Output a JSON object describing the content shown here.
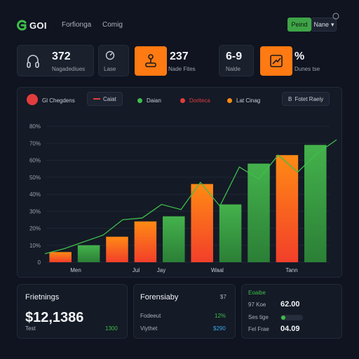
{
  "header": {
    "logo_text": "GOI",
    "nav": [
      "Forfionga",
      "Comig"
    ],
    "primary_button": "Peind",
    "dropdown_label": "Nane",
    "dropdown_caret": "▾"
  },
  "stats": [
    {
      "value": "372",
      "label": "Nagadediues"
    },
    {
      "value": "",
      "label": "Lase"
    },
    {
      "value": "237",
      "label": "Nade Fites"
    },
    {
      "value": "6-9",
      "label": "Nalde"
    },
    {
      "value": "%",
      "label": "Dunes tse"
    }
  ],
  "legend": {
    "title": "Gl Chegdens",
    "items": [
      {
        "label": "Caiat",
        "color": "#e23d3d",
        "kind": "line"
      },
      {
        "label": "Daian",
        "color": "#3fbe4b",
        "kind": "dot"
      },
      {
        "label": "Doriteca",
        "color": "#e23d3d",
        "kind": "dot"
      },
      {
        "label": "Lat Cinag",
        "color": "#ff8a14",
        "kind": "dot"
      }
    ],
    "button_label": "Fotet Raeiy",
    "button_prefix": "B"
  },
  "chart_data": {
    "type": "bar",
    "y_ticks": [
      "0",
      "10%",
      "20%",
      "30%",
      "40%",
      "50%",
      "60%",
      "70%",
      "80%"
    ],
    "x_labels": [
      "Men",
      "Jul",
      "Jay",
      "Waal",
      "Tann"
    ],
    "ylim": [
      0,
      80
    ],
    "bars": [
      {
        "value": 6,
        "color": "orange"
      },
      {
        "value": 10,
        "color": "green"
      },
      {
        "value": 15,
        "color": "orange"
      },
      {
        "value": 24,
        "color": "orange"
      },
      {
        "value": 27,
        "color": "green"
      },
      {
        "value": 46,
        "color": "orange"
      },
      {
        "value": 34,
        "color": "green"
      },
      {
        "value": 58,
        "color": "green"
      },
      {
        "value": 63,
        "color": "orange"
      },
      {
        "value": 69,
        "color": "green"
      }
    ],
    "line": [
      5,
      8,
      12,
      16,
      25,
      26,
      34,
      31,
      47,
      33,
      56,
      49,
      63,
      53,
      64,
      72
    ]
  },
  "bottom": {
    "card1": {
      "title": "Frietnings",
      "big": "$12,1386",
      "sub": "Test",
      "accent": "1300"
    },
    "card2": {
      "title": "Forensiaby",
      "title_right": "$7",
      "row1_label": "Fodeeut",
      "row1_value": "12%",
      "row2_label": "Viythet",
      "row2_value": "$290"
    },
    "card3": {
      "header": "Eoaibe",
      "rows": [
        {
          "label": "97 Koe",
          "value": "62.00"
        },
        {
          "label": "Ses tige",
          "value": ""
        },
        {
          "label": "Fel Frae",
          "value": "04.09"
        }
      ]
    }
  },
  "colors": {
    "accent_green": "#3fbe4b",
    "accent_orange": "#ff7a12",
    "accent_red": "#e23d3d",
    "bg": "#0f1420"
  }
}
